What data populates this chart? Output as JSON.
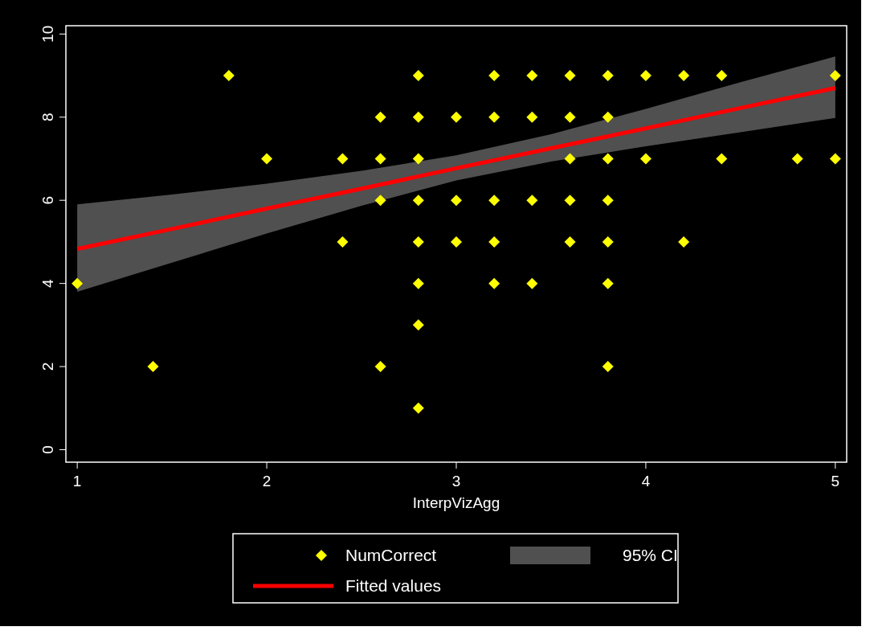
{
  "chart_data": {
    "type": "scatter",
    "xlabel": "InterpVizAgg",
    "xlim": [
      0.94,
      5.06
    ],
    "ylim": [
      -0.3,
      10.2
    ],
    "xticks": [
      1,
      2,
      3,
      4,
      5
    ],
    "yticks": [
      0,
      2,
      4,
      6,
      8,
      10
    ],
    "grid": false,
    "legend": "bottom",
    "annotations": [
      "95% CI"
    ],
    "series": [
      {
        "name": "NumCorrect",
        "marker": "diamond",
        "color": "#ffff00",
        "x": [
          1,
          1.4,
          1.8,
          2,
          2.4,
          2.4,
          2.6,
          2.6,
          2.6,
          2.6,
          2.8,
          2.8,
          2.8,
          2.8,
          2.8,
          2.8,
          2.8,
          2.8,
          3,
          3,
          3,
          3.2,
          3.2,
          3.2,
          3.2,
          3.2,
          3.4,
          3.4,
          3.4,
          3.4,
          3.6,
          3.6,
          3.6,
          3.6,
          3.6,
          3.8,
          3.8,
          3.8,
          3.8,
          3.8,
          3.8,
          3.8,
          4,
          4,
          4.2,
          4.2,
          4.4,
          4.4,
          4.8,
          5,
          5
        ],
        "values": [
          4,
          2,
          9,
          7,
          7,
          5,
          8,
          7,
          6,
          2,
          9,
          8,
          7,
          6,
          5,
          4,
          3,
          1,
          8,
          6,
          5,
          9,
          8,
          6,
          5,
          4,
          9,
          8,
          6,
          4,
          9,
          8,
          7,
          6,
          5,
          9,
          8,
          7,
          6,
          5,
          4,
          2,
          9,
          7,
          9,
          5,
          9,
          7,
          7,
          9,
          7
        ]
      },
      {
        "name": "Fitted values",
        "type": "line",
        "color": "#ff0000",
        "line_style": "solid",
        "x": [
          1,
          1.5,
          2,
          2.5,
          3,
          3.5,
          4,
          4.5,
          5
        ],
        "values": [
          4.83,
          5.31,
          5.8,
          6.28,
          6.77,
          7.25,
          7.73,
          8.22,
          8.7
        ],
        "lower": [
          3.8,
          4.5,
          5.2,
          5.87,
          6.48,
          6.93,
          7.3,
          7.64,
          7.98
        ],
        "upper": [
          5.9,
          6.14,
          6.4,
          6.71,
          7.08,
          7.59,
          8.2,
          8.84,
          9.46
        ]
      }
    ]
  }
}
